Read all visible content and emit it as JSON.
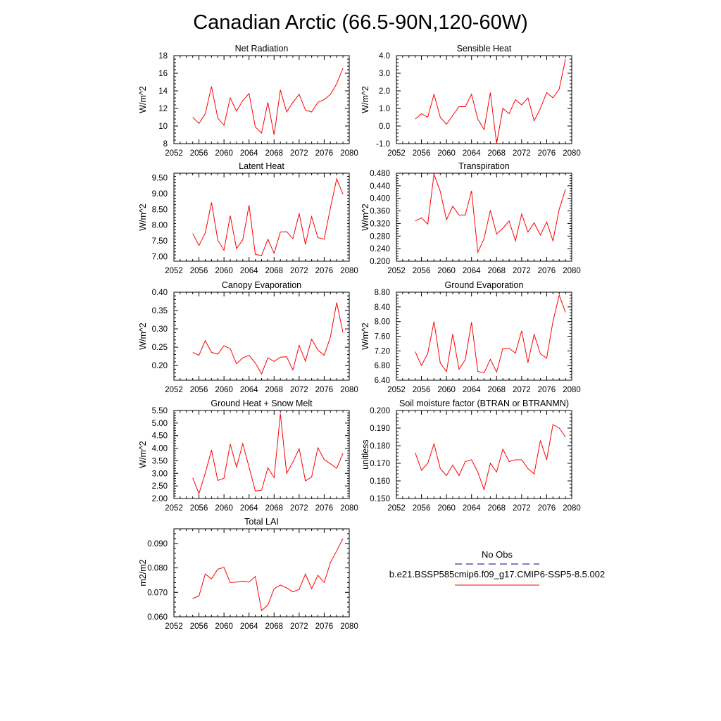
{
  "figure": {
    "title": "Canadian Arctic (66.5-90N,120-60W)"
  },
  "legend": {
    "obs_label": "No Obs",
    "obs_color": "#3333aa",
    "model_label": "b.e21.BSSP585cmip6.f09_g17.CMIP6-SSP5-8.5.002",
    "model_color": "#ff0000"
  },
  "chart_data": [
    {
      "type": "line",
      "title": "Net Radiation",
      "ylabel": "W/m^2",
      "xlim": [
        2052,
        2080
      ],
      "ylim": [
        8,
        18
      ],
      "xticks": [
        "2052",
        "2056",
        "2060",
        "2064",
        "2068",
        "2072",
        "2076",
        "2080"
      ],
      "yticks": [
        "8",
        "10",
        "12",
        "14",
        "16",
        "18"
      ],
      "x": [
        2055,
        2056,
        2057,
        2058,
        2059,
        2060,
        2061,
        2062,
        2063,
        2064,
        2065,
        2066,
        2067,
        2068,
        2069,
        2070,
        2071,
        2072,
        2073,
        2074,
        2075,
        2076,
        2077,
        2078,
        2079
      ],
      "series": [
        {
          "values": [
            11.0,
            10.3,
            11.4,
            14.5,
            10.9,
            10.1,
            13.2,
            11.7,
            12.9,
            13.7,
            9.9,
            9.2,
            12.7,
            9.0,
            14.1,
            11.6,
            12.7,
            13.6,
            11.8,
            11.6,
            12.7,
            13.0,
            13.6,
            14.8,
            16.6
          ],
          "color": "#ff0000"
        }
      ]
    },
    {
      "type": "line",
      "title": "Sensible Heat",
      "ylabel": "W/m^2",
      "xlim": [
        2052,
        2080
      ],
      "ylim": [
        -1.0,
        4.0
      ],
      "xticks": [
        "2052",
        "2056",
        "2060",
        "2064",
        "2068",
        "2072",
        "2076",
        "2080"
      ],
      "yticks": [
        "-1.0",
        "0.0",
        "1.0",
        "2.0",
        "3.0",
        "4.0"
      ],
      "x": [
        2055,
        2056,
        2057,
        2058,
        2059,
        2060,
        2061,
        2062,
        2063,
        2064,
        2065,
        2066,
        2067,
        2068,
        2069,
        2070,
        2071,
        2072,
        2073,
        2074,
        2075,
        2076,
        2077,
        2078,
        2079
      ],
      "series": [
        {
          "values": [
            0.4,
            0.7,
            0.5,
            1.8,
            0.5,
            0.1,
            0.6,
            1.1,
            1.1,
            1.8,
            0.4,
            -0.2,
            1.9,
            -1.0,
            1.0,
            0.7,
            1.5,
            1.2,
            1.6,
            0.3,
            1.0,
            1.9,
            1.6,
            2.1,
            3.8
          ],
          "color": "#ff0000"
        }
      ]
    },
    {
      "type": "line",
      "title": "Latent Heat",
      "ylabel": "W/m^2",
      "xlim": [
        2052,
        2080
      ],
      "ylim": [
        6.85,
        9.65
      ],
      "xticks": [
        "2052",
        "2056",
        "2060",
        "2064",
        "2068",
        "2072",
        "2076",
        "2080"
      ],
      "yticks": [
        "7.00",
        "7.50",
        "8.00",
        "8.50",
        "9.00",
        "9.50"
      ],
      "x": [
        2055,
        2056,
        2057,
        2058,
        2059,
        2060,
        2061,
        2062,
        2063,
        2064,
        2065,
        2066,
        2067,
        2068,
        2069,
        2070,
        2071,
        2072,
        2073,
        2074,
        2075,
        2076,
        2077,
        2078,
        2079
      ],
      "series": [
        {
          "values": [
            7.73,
            7.35,
            7.75,
            8.72,
            7.52,
            7.2,
            8.3,
            7.25,
            7.53,
            8.63,
            7.07,
            7.03,
            7.55,
            7.1,
            7.78,
            7.79,
            7.57,
            8.37,
            7.38,
            8.27,
            7.6,
            7.55,
            8.55,
            9.47,
            8.98
          ],
          "color": "#ff0000"
        }
      ]
    },
    {
      "type": "line",
      "title": "Transpiration",
      "ylabel": "W/m^2",
      "xlim": [
        2052,
        2080
      ],
      "ylim": [
        0.2,
        0.48
      ],
      "xticks": [
        "2052",
        "2056",
        "2060",
        "2064",
        "2068",
        "2072",
        "2076",
        "2080"
      ],
      "yticks": [
        "0.200",
        "0.240",
        "0.280",
        "0.320",
        "0.360",
        "0.400",
        "0.440",
        "0.480"
      ],
      "x": [
        2055,
        2056,
        2057,
        2058,
        2059,
        2060,
        2061,
        2062,
        2063,
        2064,
        2065,
        2066,
        2067,
        2068,
        2069,
        2070,
        2071,
        2072,
        2073,
        2074,
        2075,
        2076,
        2077,
        2078,
        2079
      ],
      "series": [
        {
          "values": [
            0.328,
            0.338,
            0.318,
            0.477,
            0.422,
            0.332,
            0.375,
            0.347,
            0.347,
            0.424,
            0.228,
            0.272,
            0.362,
            0.287,
            0.305,
            0.328,
            0.265,
            0.35,
            0.293,
            0.322,
            0.283,
            0.325,
            0.265,
            0.365,
            0.429
          ],
          "color": "#ff0000"
        }
      ]
    },
    {
      "type": "line",
      "title": "Canopy Evaporation",
      "ylabel": "W/m^2",
      "xlim": [
        2052,
        2080
      ],
      "ylim": [
        0.16,
        0.4
      ],
      "xticks": [
        "2052",
        "2056",
        "2060",
        "2064",
        "2068",
        "2072",
        "2076",
        "2080"
      ],
      "yticks": [
        "0.20",
        "0.25",
        "0.30",
        "0.35",
        "0.40"
      ],
      "x": [
        2055,
        2056,
        2057,
        2058,
        2059,
        2060,
        2061,
        2062,
        2063,
        2064,
        2065,
        2066,
        2067,
        2068,
        2069,
        2070,
        2071,
        2072,
        2073,
        2074,
        2075,
        2076,
        2077,
        2078,
        2079
      ],
      "series": [
        {
          "values": [
            0.236,
            0.228,
            0.268,
            0.236,
            0.231,
            0.254,
            0.246,
            0.205,
            0.221,
            0.228,
            0.207,
            0.177,
            0.221,
            0.211,
            0.223,
            0.224,
            0.188,
            0.255,
            0.212,
            0.272,
            0.242,
            0.228,
            0.278,
            0.372,
            0.29
          ],
          "color": "#ff0000"
        }
      ]
    },
    {
      "type": "line",
      "title": "Ground Evaporation",
      "ylabel": "W/m^2",
      "xlim": [
        2052,
        2080
      ],
      "ylim": [
        6.4,
        8.8
      ],
      "xticks": [
        "2052",
        "2056",
        "2060",
        "2064",
        "2068",
        "2072",
        "2076",
        "2080"
      ],
      "yticks": [
        "6.40",
        "6.80",
        "7.20",
        "7.60",
        "8.00",
        "8.40",
        "8.80"
      ],
      "x": [
        2055,
        2056,
        2057,
        2058,
        2059,
        2060,
        2061,
        2062,
        2063,
        2064,
        2065,
        2066,
        2067,
        2068,
        2069,
        2070,
        2071,
        2072,
        2073,
        2074,
        2075,
        2076,
        2077,
        2078,
        2079
      ],
      "series": [
        {
          "values": [
            7.18,
            6.8,
            7.13,
            8.0,
            6.87,
            6.63,
            7.66,
            6.7,
            6.96,
            7.98,
            6.64,
            6.6,
            6.97,
            6.62,
            7.27,
            7.27,
            7.14,
            7.75,
            6.88,
            7.65,
            7.12,
            7.0,
            8.0,
            8.72,
            8.25
          ],
          "color": "#ff0000"
        }
      ]
    },
    {
      "type": "line",
      "title": "Ground Heat + Snow Melt",
      "ylabel": "W/m^2",
      "xlim": [
        2052,
        2080
      ],
      "ylim": [
        2.0,
        5.5
      ],
      "xticks": [
        "2052",
        "2056",
        "2060",
        "2064",
        "2068",
        "2072",
        "2076",
        "2080"
      ],
      "yticks": [
        "2.00",
        "2.50",
        "3.00",
        "3.50",
        "4.00",
        "4.50",
        "5.00",
        "5.50"
      ],
      "x": [
        2055,
        2056,
        2057,
        2058,
        2059,
        2060,
        2061,
        2062,
        2063,
        2064,
        2065,
        2066,
        2067,
        2068,
        2069,
        2070,
        2071,
        2072,
        2073,
        2074,
        2075,
        2076,
        2077,
        2078,
        2079
      ],
      "series": [
        {
          "values": [
            2.82,
            2.2,
            3.0,
            3.93,
            2.72,
            2.8,
            4.17,
            3.25,
            4.18,
            3.25,
            2.3,
            2.33,
            3.22,
            2.83,
            5.37,
            3.0,
            3.45,
            3.98,
            2.7,
            2.86,
            4.02,
            3.55,
            3.38,
            3.2,
            3.8
          ],
          "color": "#ff0000"
        }
      ]
    },
    {
      "type": "line",
      "title": "Soil moisture factor (BTRAN or BTRANMN)",
      "ylabel": "unitless",
      "xlim": [
        2052,
        2080
      ],
      "ylim": [
        0.15,
        0.2
      ],
      "xticks": [
        "2052",
        "2056",
        "2060",
        "2064",
        "2068",
        "2072",
        "2076",
        "2080"
      ],
      "yticks": [
        "0.150",
        "0.160",
        "0.170",
        "0.180",
        "0.190",
        "0.200"
      ],
      "x": [
        2055,
        2056,
        2057,
        2058,
        2059,
        2060,
        2061,
        2062,
        2063,
        2064,
        2065,
        2066,
        2067,
        2068,
        2069,
        2070,
        2071,
        2072,
        2073,
        2074,
        2075,
        2076,
        2077,
        2078,
        2079
      ],
      "series": [
        {
          "values": [
            0.176,
            0.166,
            0.17,
            0.181,
            0.167,
            0.163,
            0.169,
            0.163,
            0.171,
            0.172,
            0.165,
            0.155,
            0.17,
            0.165,
            0.178,
            0.171,
            0.172,
            0.172,
            0.167,
            0.164,
            0.183,
            0.172,
            0.192,
            0.19,
            0.185
          ],
          "color": "#ff0000"
        }
      ]
    },
    {
      "type": "line",
      "title": "Total LAI",
      "ylabel": "m2/m2",
      "xlim": [
        2052,
        2080
      ],
      "ylim": [
        0.06,
        0.096
      ],
      "xticks": [
        "2052",
        "2056",
        "2060",
        "2064",
        "2068",
        "2072",
        "2076",
        "2080"
      ],
      "yticks": [
        "0.060",
        "0.070",
        "0.080",
        "0.090"
      ],
      "x": [
        2055,
        2056,
        2057,
        2058,
        2059,
        2060,
        2061,
        2062,
        2063,
        2064,
        2065,
        2066,
        2067,
        2068,
        2069,
        2070,
        2071,
        2072,
        2073,
        2074,
        2075,
        2076,
        2077,
        2078,
        2079
      ],
      "series": [
        {
          "values": [
            0.0675,
            0.0685,
            0.0775,
            0.0755,
            0.0795,
            0.0802,
            0.074,
            0.0742,
            0.0746,
            0.0742,
            0.0765,
            0.0625,
            0.0648,
            0.0715,
            0.073,
            0.0718,
            0.0702,
            0.0712,
            0.0775,
            0.0715,
            0.077,
            0.074,
            0.0822,
            0.087,
            0.092
          ],
          "color": "#ff0000"
        }
      ]
    }
  ]
}
